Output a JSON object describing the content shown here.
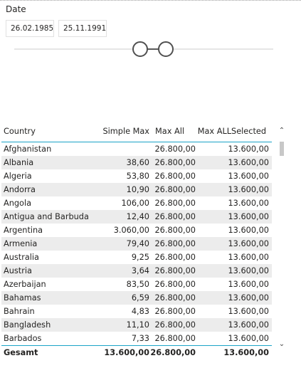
{
  "slicer": {
    "title": "Date",
    "from": "26.02.1985",
    "to": "25.11.1991"
  },
  "table": {
    "headers": {
      "country": "Country",
      "simple_max": "Simple Max",
      "max_all": "Max All",
      "max_allselected": "Max ALLSelected"
    },
    "rows": [
      {
        "country": "Afghanistan",
        "simple_max": "",
        "max_all": "26.800,00",
        "max_allselected": "13.600,00"
      },
      {
        "country": "Albania",
        "simple_max": "38,60",
        "max_all": "26.800,00",
        "max_allselected": "13.600,00"
      },
      {
        "country": "Algeria",
        "simple_max": "53,80",
        "max_all": "26.800,00",
        "max_allselected": "13.600,00"
      },
      {
        "country": "Andorra",
        "simple_max": "10,90",
        "max_all": "26.800,00",
        "max_allselected": "13.600,00"
      },
      {
        "country": "Angola",
        "simple_max": "106,00",
        "max_all": "26.800,00",
        "max_allselected": "13.600,00"
      },
      {
        "country": "Antigua and Barbuda",
        "simple_max": "12,40",
        "max_all": "26.800,00",
        "max_allselected": "13.600,00"
      },
      {
        "country": "Argentina",
        "simple_max": "3.060,00",
        "max_all": "26.800,00",
        "max_allselected": "13.600,00"
      },
      {
        "country": "Armenia",
        "simple_max": "79,40",
        "max_all": "26.800,00",
        "max_allselected": "13.600,00"
      },
      {
        "country": "Australia",
        "simple_max": "9,25",
        "max_all": "26.800,00",
        "max_allselected": "13.600,00"
      },
      {
        "country": "Austria",
        "simple_max": "3,64",
        "max_all": "26.800,00",
        "max_allselected": "13.600,00"
      },
      {
        "country": "Azerbaijan",
        "simple_max": "83,50",
        "max_all": "26.800,00",
        "max_allselected": "13.600,00"
      },
      {
        "country": "Bahamas",
        "simple_max": "6,59",
        "max_all": "26.800,00",
        "max_allselected": "13.600,00"
      },
      {
        "country": "Bahrain",
        "simple_max": "4,83",
        "max_all": "26.800,00",
        "max_allselected": "13.600,00"
      },
      {
        "country": "Bangladesh",
        "simple_max": "11,10",
        "max_all": "26.800,00",
        "max_allselected": "13.600,00"
      },
      {
        "country": "Barbados",
        "simple_max": "7,33",
        "max_all": "26.800,00",
        "max_allselected": "13.600,00"
      }
    ],
    "total": {
      "label": "Gesamt",
      "simple_max": "13.600,00",
      "max_all": "26.800,00",
      "max_allselected": "13.600,00"
    }
  },
  "scrollbar": {
    "up_icon": "chevron-up-icon",
    "down_icon": "chevron-down-icon"
  }
}
